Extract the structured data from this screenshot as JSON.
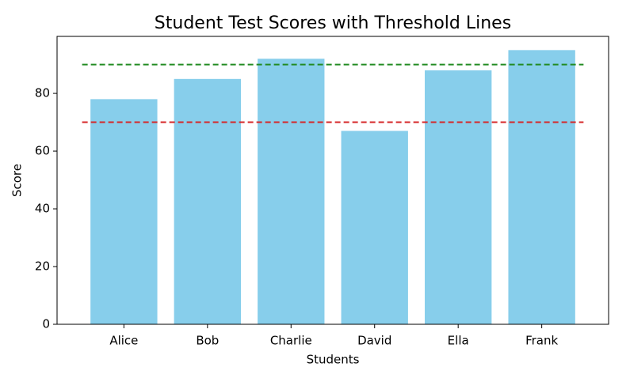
{
  "chart_data": {
    "type": "bar",
    "title": "Student Test Scores with Threshold Lines",
    "xlabel": "Students",
    "ylabel": "Score",
    "categories": [
      "Alice",
      "Bob",
      "Charlie",
      "David",
      "Ella",
      "Frank"
    ],
    "values": [
      78,
      85,
      92,
      67,
      88,
      95
    ],
    "color": "#87ceeb",
    "ylim": [
      0,
      99.75
    ],
    "yticks": [
      0,
      20,
      40,
      60,
      80
    ],
    "thresholds": [
      {
        "value": 70,
        "color": "#d62728"
      },
      {
        "value": 90,
        "color": "#228b22"
      }
    ]
  }
}
